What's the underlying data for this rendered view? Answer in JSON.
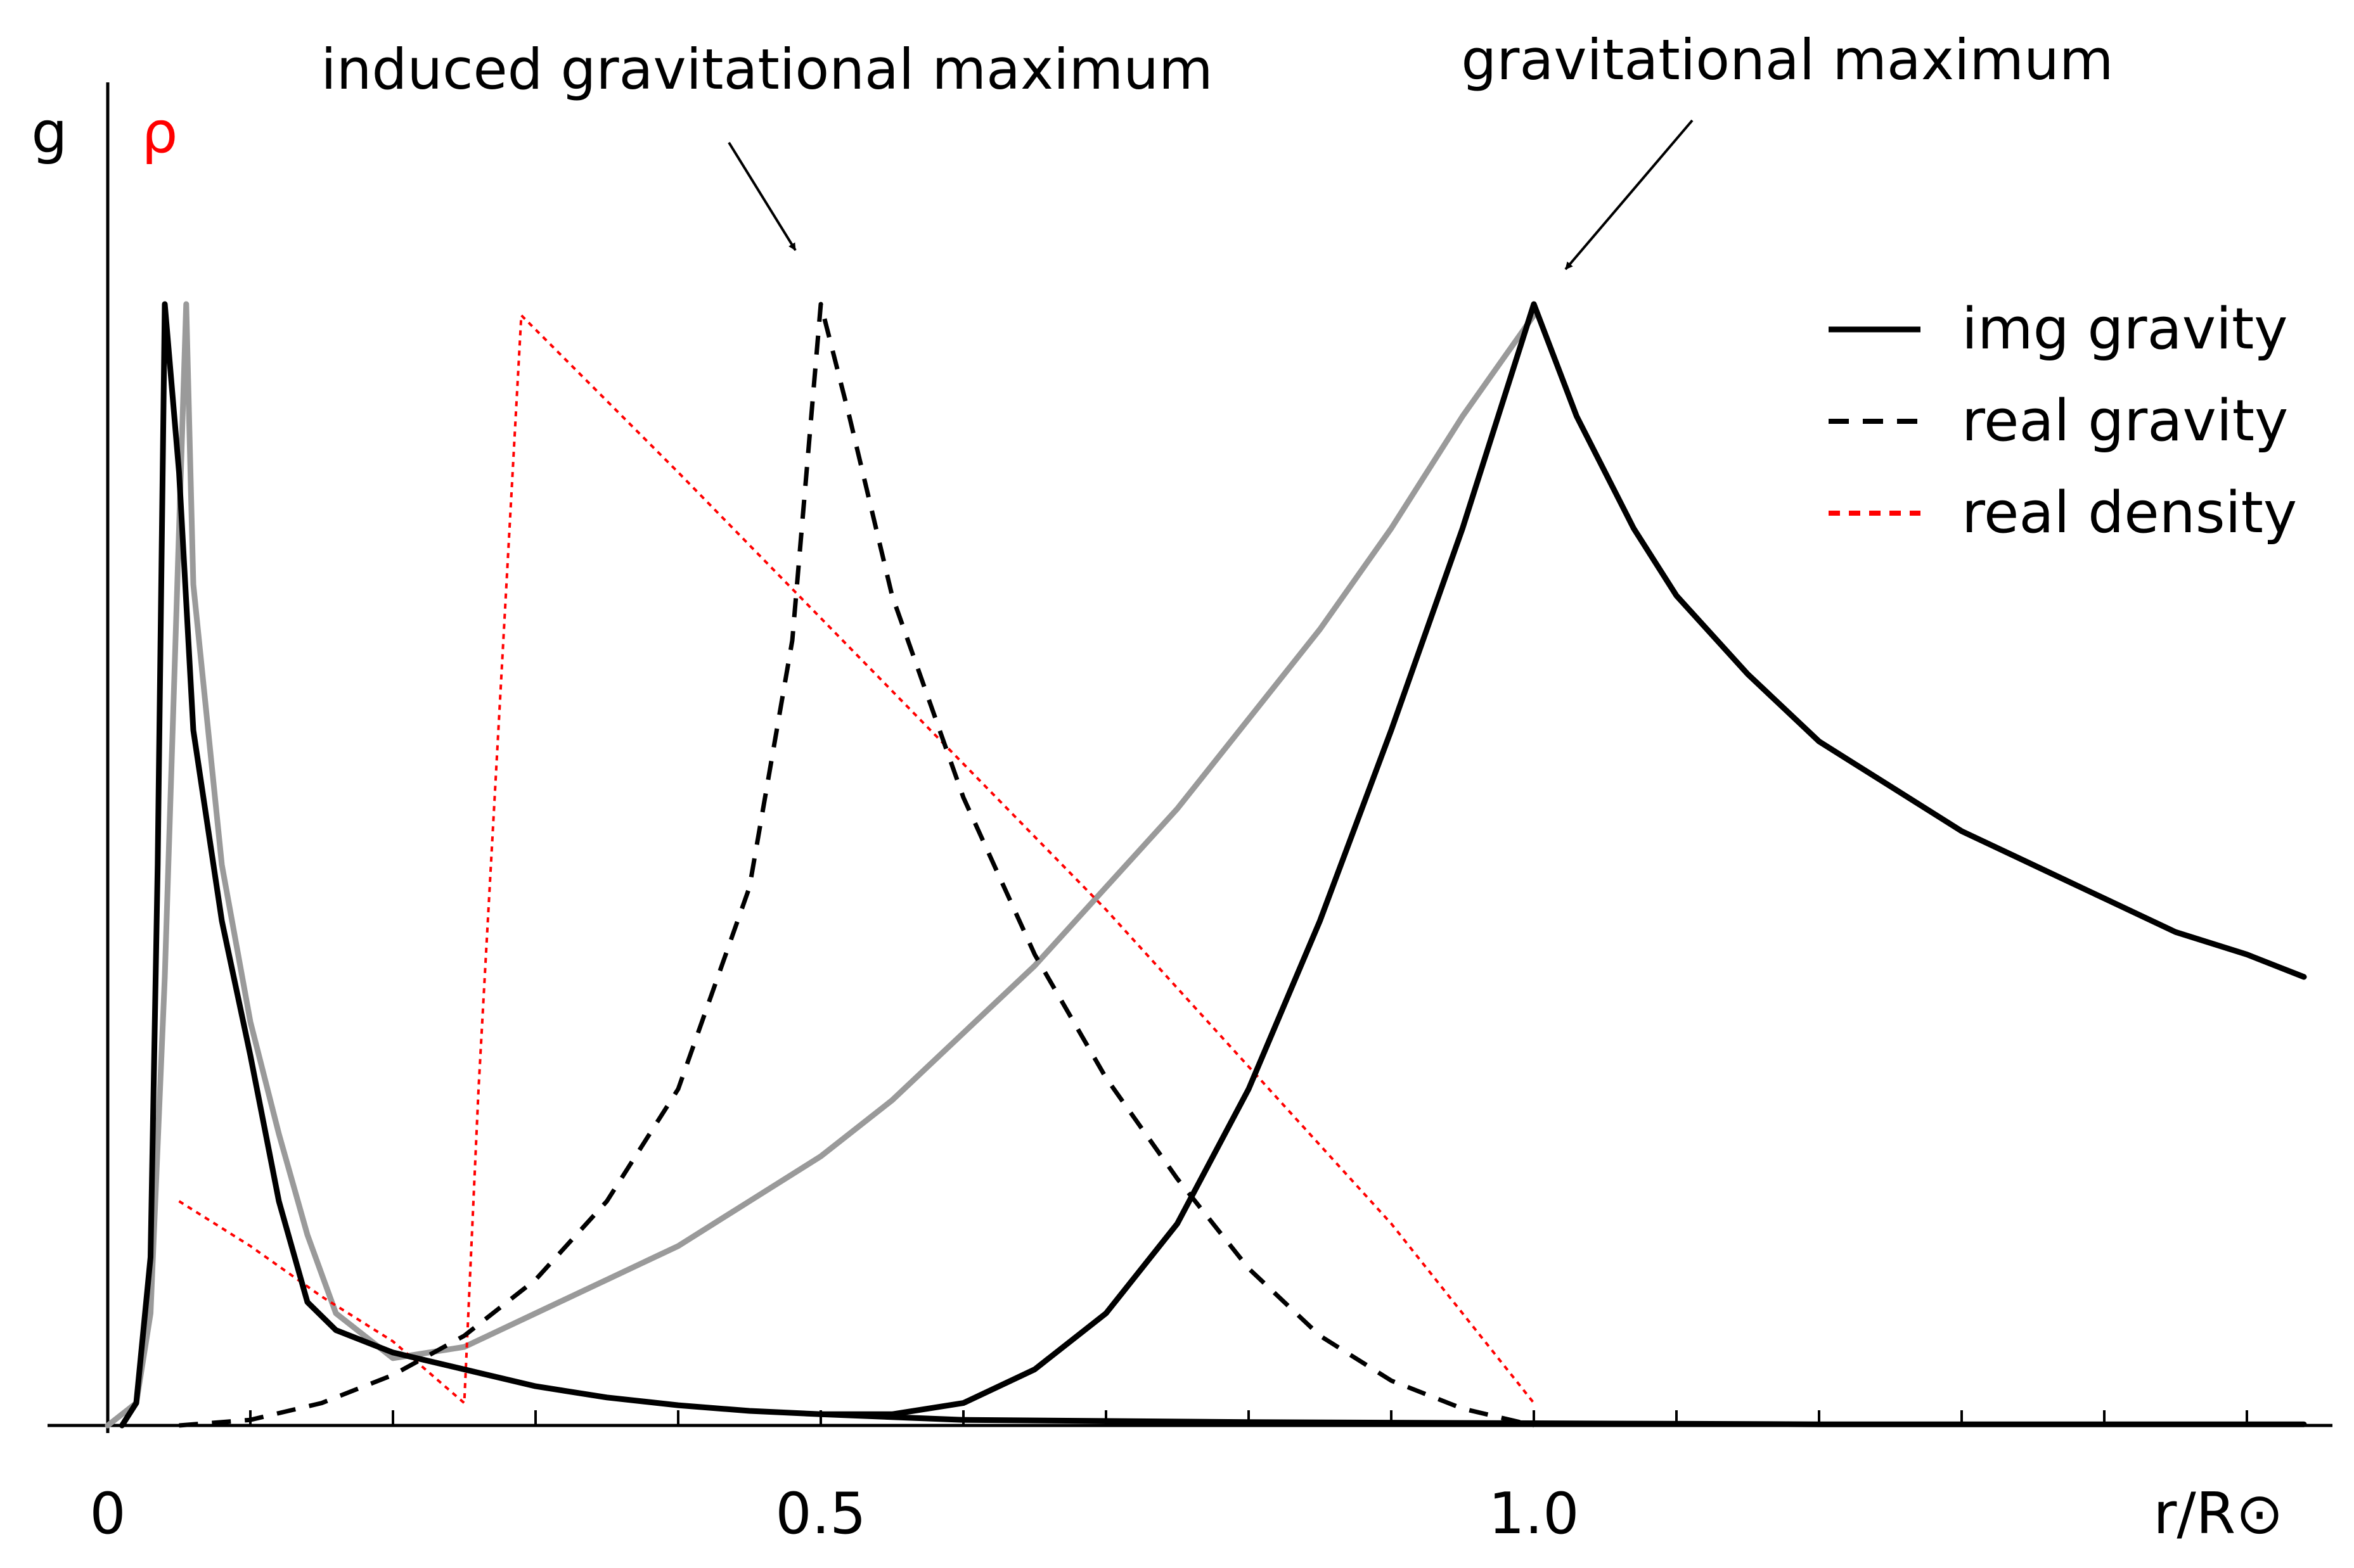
{
  "chart_data": {
    "type": "line",
    "title": "",
    "xlabel": "r/R⊙",
    "ylabel": "g",
    "y2label": "ρ",
    "xlim": [
      0,
      1.55
    ],
    "ylim": [
      0,
      1.05
    ],
    "x_ticks": [
      0,
      0.1,
      0.2,
      0.3,
      0.4,
      0.5,
      0.6,
      0.7,
      0.8,
      0.9,
      1.0,
      1.1,
      1.2,
      1.3,
      1.4,
      1.5
    ],
    "x_tick_labels": [
      {
        "x": 0,
        "label": "0"
      },
      {
        "x": 0.5,
        "label": "0.5"
      },
      {
        "x": 1.0,
        "label": "1.0"
      }
    ],
    "grid": false,
    "legend": {
      "position": "top-right",
      "entries": [
        {
          "label": "img gravity",
          "style": "solid",
          "color": "#000000"
        },
        {
          "label": "real gravity",
          "style": "dashed",
          "color": "#000000"
        },
        {
          "label": "real density",
          "style": "dotted",
          "color": "#ff0000"
        }
      ]
    },
    "annotations": [
      {
        "text": "induced gravitational maximum",
        "points_to": [
          0.5,
          1.0
        ]
      },
      {
        "text": "gravitational maximum",
        "points_to": [
          1.0,
          1.0
        ]
      }
    ],
    "series": [
      {
        "name": "img gravity",
        "color": "#000000",
        "dash": "solid",
        "points": [
          [
            0.01,
            0.0
          ],
          [
            0.02,
            0.02
          ],
          [
            0.03,
            0.15
          ],
          [
            0.035,
            0.5
          ],
          [
            0.04,
            1.0
          ],
          [
            0.05,
            0.85
          ],
          [
            0.06,
            0.62
          ],
          [
            0.08,
            0.45
          ],
          [
            0.1,
            0.33
          ],
          [
            0.12,
            0.2
          ],
          [
            0.14,
            0.11
          ],
          [
            0.16,
            0.085
          ],
          [
            0.2,
            0.065
          ],
          [
            0.25,
            0.05
          ],
          [
            0.3,
            0.035
          ],
          [
            0.35,
            0.025
          ],
          [
            0.4,
            0.018
          ],
          [
            0.45,
            0.013
          ],
          [
            0.5,
            0.01
          ],
          [
            0.55,
            0.01
          ],
          [
            0.6,
            0.02
          ],
          [
            0.65,
            0.05
          ],
          [
            0.7,
            0.1
          ],
          [
            0.75,
            0.18
          ],
          [
            0.8,
            0.3
          ],
          [
            0.85,
            0.45
          ],
          [
            0.9,
            0.62
          ],
          [
            0.95,
            0.8
          ],
          [
            1.0,
            1.0
          ],
          [
            1.03,
            0.9
          ],
          [
            1.07,
            0.8
          ],
          [
            1.1,
            0.74
          ],
          [
            1.15,
            0.67
          ],
          [
            1.2,
            0.61
          ],
          [
            1.25,
            0.57
          ],
          [
            1.3,
            0.53
          ],
          [
            1.35,
            0.5
          ],
          [
            1.4,
            0.47
          ],
          [
            1.45,
            0.44
          ],
          [
            1.5,
            0.42
          ],
          [
            1.54,
            0.4
          ]
        ]
      },
      {
        "name": "img gravity (baseline)",
        "color": "#000000",
        "dash": "solid",
        "points": [
          [
            0.5,
            0.01
          ],
          [
            0.6,
            0.005
          ],
          [
            0.8,
            0.003
          ],
          [
            1.0,
            0.002
          ],
          [
            1.2,
            0.001
          ],
          [
            1.4,
            0.001
          ],
          [
            1.54,
            0.001
          ]
        ]
      },
      {
        "name": "",
        "color": "#9a9a9a",
        "dash": "solid",
        "points": [
          [
            0.0,
            0.0
          ],
          [
            0.02,
            0.02
          ],
          [
            0.03,
            0.1
          ],
          [
            0.04,
            0.4
          ],
          [
            0.055,
            1.0
          ],
          [
            0.06,
            0.75
          ],
          [
            0.08,
            0.5
          ],
          [
            0.1,
            0.36
          ],
          [
            0.12,
            0.26
          ],
          [
            0.14,
            0.17
          ],
          [
            0.16,
            0.1
          ],
          [
            0.2,
            0.06
          ],
          [
            0.25,
            0.07
          ],
          [
            0.3,
            0.1
          ],
          [
            0.35,
            0.13
          ],
          [
            0.4,
            0.16
          ],
          [
            0.45,
            0.2
          ],
          [
            0.5,
            0.24
          ],
          [
            0.55,
            0.29
          ],
          [
            0.6,
            0.35
          ],
          [
            0.65,
            0.41
          ],
          [
            0.7,
            0.48
          ],
          [
            0.75,
            0.55
          ],
          [
            0.8,
            0.63
          ],
          [
            0.85,
            0.71
          ],
          [
            0.9,
            0.8
          ],
          [
            0.95,
            0.9
          ],
          [
            1.0,
            0.99
          ]
        ]
      },
      {
        "name": "real gravity",
        "color": "#000000",
        "dash": "dashed",
        "points": [
          [
            0.05,
            0.0
          ],
          [
            0.1,
            0.005
          ],
          [
            0.15,
            0.02
          ],
          [
            0.2,
            0.045
          ],
          [
            0.25,
            0.08
          ],
          [
            0.3,
            0.13
          ],
          [
            0.35,
            0.2
          ],
          [
            0.4,
            0.3
          ],
          [
            0.45,
            0.48
          ],
          [
            0.48,
            0.7
          ],
          [
            0.5,
            1.0
          ],
          [
            0.52,
            0.9
          ],
          [
            0.55,
            0.74
          ],
          [
            0.6,
            0.56
          ],
          [
            0.65,
            0.42
          ],
          [
            0.7,
            0.31
          ],
          [
            0.75,
            0.22
          ],
          [
            0.8,
            0.14
          ],
          [
            0.85,
            0.08
          ],
          [
            0.9,
            0.04
          ],
          [
            0.95,
            0.015
          ],
          [
            1.0,
            0.0
          ]
        ]
      },
      {
        "name": "real density",
        "color": "#ff0000",
        "dash": "dotted",
        "points": [
          [
            0.05,
            0.2
          ],
          [
            0.1,
            0.16
          ],
          [
            0.15,
            0.115
          ],
          [
            0.2,
            0.075
          ],
          [
            0.25,
            0.02
          ],
          [
            0.26,
            0.3
          ],
          [
            0.29,
            0.99
          ],
          [
            0.4,
            0.85
          ],
          [
            0.5,
            0.72
          ],
          [
            0.6,
            0.59
          ],
          [
            0.7,
            0.46
          ],
          [
            0.8,
            0.32
          ],
          [
            0.9,
            0.18
          ],
          [
            1.0,
            0.02
          ]
        ]
      }
    ]
  }
}
